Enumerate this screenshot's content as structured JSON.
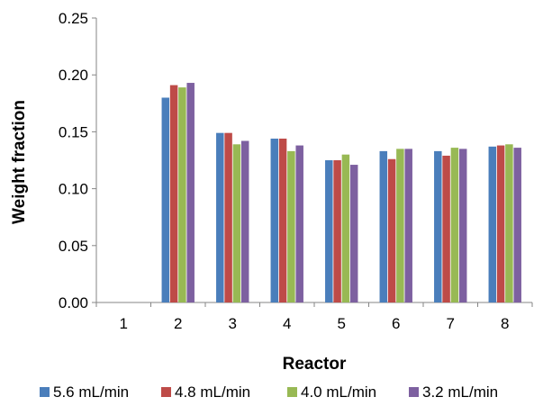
{
  "chart_data": {
    "type": "bar",
    "title": "",
    "xlabel": "Reactor",
    "ylabel": "Weight fraction",
    "categories": [
      "1",
      "2",
      "3",
      "4",
      "5",
      "6",
      "7",
      "8"
    ],
    "ylim": [
      0,
      0.25
    ],
    "yticks": [
      "0.00",
      "0.05",
      "0.10",
      "0.15",
      "0.20",
      "0.25"
    ],
    "grid": false,
    "legend_position": "bottom",
    "series": [
      {
        "name": "5.6 mL/min",
        "color": "#4a7ebb",
        "values": [
          0,
          0.18,
          0.149,
          0.144,
          0.125,
          0.133,
          0.133,
          0.137
        ]
      },
      {
        "name": "4.8 mL/min",
        "color": "#be4b48",
        "values": [
          0,
          0.191,
          0.149,
          0.144,
          0.125,
          0.126,
          0.129,
          0.138
        ]
      },
      {
        "name": "4.0 mL/min",
        "color": "#98b954",
        "values": [
          0,
          0.189,
          0.139,
          0.133,
          0.13,
          0.135,
          0.136,
          0.139
        ]
      },
      {
        "name": "3.2 mL/min",
        "color": "#7d60a0",
        "values": [
          0,
          0.193,
          0.142,
          0.138,
          0.121,
          0.135,
          0.135,
          0.136
        ]
      }
    ]
  }
}
